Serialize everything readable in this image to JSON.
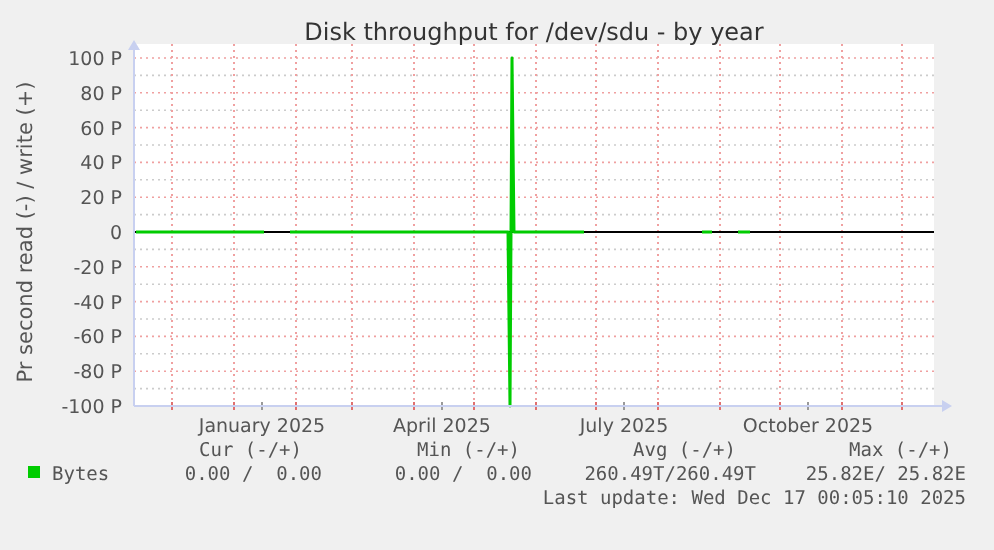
{
  "chart_data": {
    "type": "line",
    "title": "Disk throughput for /dev/sdu - by year",
    "ylabel": "Pr second read (-) / write (+)",
    "x": [
      "2024-11-13",
      "2024-11-25",
      "2024-12-10",
      "2024-12-25",
      "2025-01-10",
      "2025-01-16",
      "2025-01-22",
      "2025-01-29",
      "2025-02-15",
      "2025-03-01",
      "2025-03-15",
      "2025-04-01",
      "2025-04-15",
      "2025-05-01",
      "2025-05-15",
      "2025-05-18",
      "2025-05-19",
      "2025-05-20",
      "2025-05-21",
      "2025-06-01",
      "2025-06-15",
      "2025-06-25",
      "2025-06-28",
      "2025-08-23",
      "2025-08-28",
      "2025-08-30",
      "2025-09-10",
      "2025-09-16"
    ],
    "series": [
      {
        "name": "Bytes",
        "color": "#00cc00",
        "values": [
          0,
          0,
          0,
          0,
          0,
          0,
          null,
          0,
          0,
          0,
          0,
          0,
          0,
          0,
          0,
          0,
          -100,
          100,
          0,
          0,
          0,
          0,
          null,
          0,
          0,
          null,
          0,
          0
        ]
      }
    ],
    "xlim": [
      "2024-11-12",
      "2025-12-17"
    ],
    "xticks": [
      {
        "value": "2024-12-01",
        "label": null
      },
      {
        "value": "2025-01-01",
        "label": null
      },
      {
        "value": "2025-01-15",
        "label": "January 2025"
      },
      {
        "value": "2025-02-01",
        "label": null
      },
      {
        "value": "2025-03-01",
        "label": null
      },
      {
        "value": "2025-04-01",
        "label": null
      },
      {
        "value": "2025-04-15",
        "label": "April 2025"
      },
      {
        "value": "2025-05-01",
        "label": null
      },
      {
        "value": "2025-06-01",
        "label": null
      },
      {
        "value": "2025-07-01",
        "label": null
      },
      {
        "value": "2025-07-15",
        "label": "July 2025"
      },
      {
        "value": "2025-08-01",
        "label": null
      },
      {
        "value": "2025-09-01",
        "label": null
      },
      {
        "value": "2025-10-01",
        "label": null
      },
      {
        "value": "2025-10-15",
        "label": "October 2025"
      },
      {
        "value": "2025-11-01",
        "label": null
      },
      {
        "value": "2025-12-01",
        "label": null
      }
    ],
    "ylim": [
      -100,
      100
    ],
    "yticks": [
      {
        "value": -100,
        "label": "-100 P"
      },
      {
        "value": -90,
        "label": null
      },
      {
        "value": -80,
        "label": "-80 P"
      },
      {
        "value": -70,
        "label": null
      },
      {
        "value": -60,
        "label": "-60 P"
      },
      {
        "value": -50,
        "label": null
      },
      {
        "value": -40,
        "label": "-40 P"
      },
      {
        "value": -30,
        "label": null
      },
      {
        "value": -20,
        "label": "-20 P"
      },
      {
        "value": -10,
        "label": null
      },
      {
        "value": 0,
        "label": "0"
      },
      {
        "value": 10,
        "label": null
      },
      {
        "value": 20,
        "label": "20 P"
      },
      {
        "value": 30,
        "label": null
      },
      {
        "value": 40,
        "label": "40 P"
      },
      {
        "value": 50,
        "label": null
      },
      {
        "value": 60,
        "label": "60 P"
      },
      {
        "value": 70,
        "label": null
      },
      {
        "value": 80,
        "label": "80 P"
      },
      {
        "value": 90,
        "label": null
      },
      {
        "value": 100,
        "label": "100 P"
      }
    ],
    "ref_lines": [
      {
        "axis": "y",
        "value": 0,
        "color": "#000000"
      }
    ],
    "grid": true,
    "legend": "bottom left",
    "annotations": [
      "Cur (-/+)",
      "Min (-/+)",
      "Avg (-/+)",
      "Max (-/+)",
      "0.00 /  0.00",
      "0.00 /  0.00",
      "260.49T/260.49T",
      "25.82E/ 25.82E",
      "Last update: Wed Dec 17 00:05:10 2025"
    ]
  }
}
